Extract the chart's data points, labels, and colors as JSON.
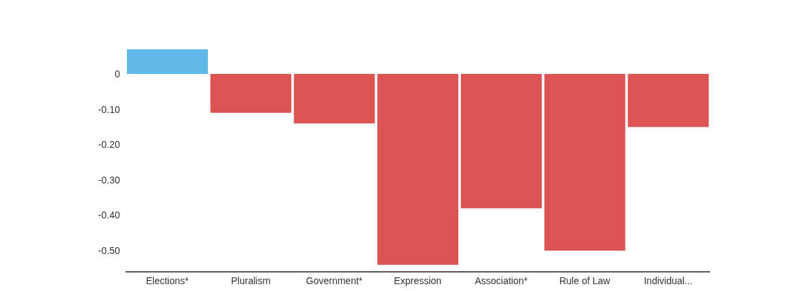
{
  "chart_data": {
    "type": "bar",
    "categories": [
      "Elections*",
      "Pluralism",
      "Government*",
      "Expression",
      "Association*",
      "Rule of Law",
      "Individual..."
    ],
    "values": [
      0.07,
      -0.11,
      -0.14,
      -0.54,
      -0.38,
      -0.5,
      -0.15
    ],
    "colors": [
      "#5fb8e6",
      "#dc5354",
      "#dc5354",
      "#dc5354",
      "#dc5354",
      "#dc5354",
      "#dc5354"
    ],
    "ylim": [
      -0.56,
      0.07
    ],
    "yticks": [
      0,
      {
        "value": -0.1,
        "label": "-0.10"
      },
      {
        "value": -0.2,
        "label": "-0.20"
      },
      {
        "value": -0.3,
        "label": "-0.30"
      },
      {
        "value": -0.4,
        "label": "-0.40"
      },
      {
        "value": -0.5,
        "label": "-0.50"
      }
    ],
    "grid": false,
    "legend": false
  }
}
